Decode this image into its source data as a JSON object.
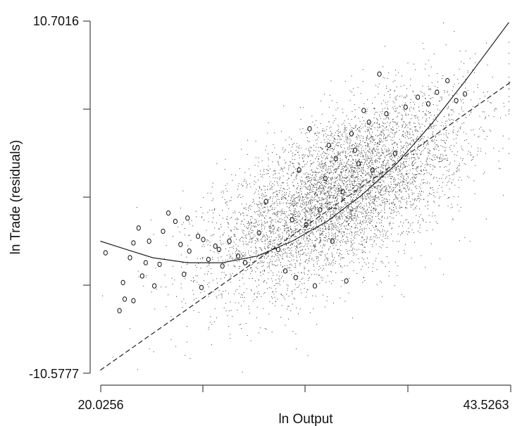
{
  "chart_data": {
    "type": "scatter",
    "title": "",
    "xlabel": "ln Output",
    "ylabel": "ln Trade (residuals)",
    "xlim": [
      20.0256,
      43.5263
    ],
    "ylim": [
      -10.5777,
      10.7016
    ],
    "x_tick_labels": [
      "20.0256",
      "43.5263"
    ],
    "y_tick_labels": [
      "10.7016",
      "-10.5777"
    ],
    "grid": false,
    "legend": "none",
    "colors": {
      "points": "#333333",
      "circles": "#111111",
      "lines": "#222222"
    },
    "series": [
      {
        "kind": "dense-point-cloud",
        "style": "dots",
        "approx_center": [
          33.7,
          0.3
        ],
        "approx_trend_slope": 0.5
      },
      {
        "kind": "highlighted-points",
        "style": "hollow-circles",
        "points": [
          [
            20.3,
            -3.3
          ],
          [
            21.3,
            -5.1
          ],
          [
            21.1,
            -6.8
          ],
          [
            21.4,
            -6.1
          ],
          [
            21.9,
            -6.2
          ],
          [
            21.7,
            -3.6
          ],
          [
            21.9,
            -2.7
          ],
          [
            22.2,
            -1.8
          ],
          [
            22.6,
            -3.9
          ],
          [
            23.1,
            -5.3
          ],
          [
            23.4,
            -4.0
          ],
          [
            23.9,
            -0.9
          ],
          [
            24.6,
            -2.8
          ],
          [
            24.8,
            -4.6
          ],
          [
            25.1,
            -3.2
          ],
          [
            25.6,
            -2.3
          ],
          [
            25.8,
            -5.4
          ],
          [
            26.2,
            -3.7
          ],
          [
            26.6,
            -2.9
          ],
          [
            27.0,
            -4.1
          ],
          [
            27.4,
            -2.6
          ],
          [
            27.9,
            -3.5
          ],
          [
            28.3,
            -3.9
          ],
          [
            22.8,
            -2.6
          ],
          [
            23.6,
            -2.0
          ],
          [
            24.3,
            -1.4
          ],
          [
            25.0,
            -1.2
          ],
          [
            25.9,
            -2.5
          ],
          [
            26.8,
            -3.1
          ],
          [
            22.4,
            -4.7
          ],
          [
            29.1,
            -2.1
          ],
          [
            29.5,
            -0.2
          ],
          [
            30.2,
            -3.1
          ],
          [
            30.6,
            -4.4
          ],
          [
            31.2,
            -4.8
          ],
          [
            31.4,
            1.7
          ],
          [
            31.8,
            -1.6
          ],
          [
            32.0,
            4.2
          ],
          [
            32.3,
            -5.3
          ],
          [
            32.9,
            1.2
          ],
          [
            33.1,
            3.2
          ],
          [
            33.5,
            2.4
          ],
          [
            33.9,
            0.4
          ],
          [
            34.1,
            -5.0
          ],
          [
            34.4,
            3.9
          ],
          [
            34.8,
            2.1
          ],
          [
            35.1,
            5.3
          ],
          [
            35.6,
            1.7
          ],
          [
            36.0,
            7.5
          ],
          [
            36.4,
            5.1
          ],
          [
            36.9,
            2.7
          ],
          [
            31.0,
            -1.3
          ],
          [
            32.6,
            -0.7
          ],
          [
            33.3,
            -2.6
          ],
          [
            34.6,
            2.9
          ],
          [
            38.2,
            6.1
          ],
          [
            38.8,
            5.7
          ],
          [
            39.3,
            6.4
          ],
          [
            39.9,
            7.1
          ],
          [
            40.4,
            5.9
          ],
          [
            40.9,
            6.3
          ],
          [
            37.5,
            5.5
          ],
          [
            35.4,
            4.6
          ]
        ]
      },
      {
        "kind": "fitted-quadratic",
        "style": "solid-line",
        "points": [
          [
            20.0,
            -2.6
          ],
          [
            21.5,
            -3.1
          ],
          [
            23.0,
            -3.6
          ],
          [
            25.0,
            -3.9
          ],
          [
            27.0,
            -3.9
          ],
          [
            29.0,
            -3.5
          ],
          [
            31.0,
            -2.6
          ],
          [
            33.0,
            -1.4
          ],
          [
            35.0,
            0.2
          ],
          [
            37.0,
            2.1
          ],
          [
            39.0,
            4.5
          ],
          [
            41.0,
            7.2
          ],
          [
            43.4,
            10.6
          ]
        ]
      },
      {
        "kind": "fitted-linear",
        "style": "dashed-line",
        "points": [
          [
            20.0,
            -10.4
          ],
          [
            43.5,
            7.0
          ]
        ]
      }
    ]
  }
}
